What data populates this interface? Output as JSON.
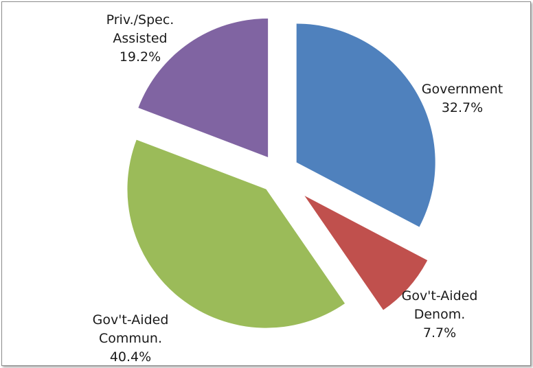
{
  "chart_data": {
    "type": "pie",
    "exploded": true,
    "start_angle_deg": 0,
    "direction": "clockwise",
    "slices": [
      {
        "label_lines": [
          "Government"
        ],
        "percent_label": "32.7%",
        "value": 32.7,
        "color": "#4f81bd"
      },
      {
        "label_lines": [
          "Gov't-Aided",
          "Denom."
        ],
        "percent_label": "7.7%",
        "value": 7.7,
        "color": "#c0504d"
      },
      {
        "label_lines": [
          "Gov't-Aided",
          "Commun."
        ],
        "percent_label": "40.4%",
        "value": 40.4,
        "color": "#9bbb59"
      },
      {
        "label_lines": [
          "Priv./Spec.",
          "Assisted"
        ],
        "percent_label": "19.2%",
        "value": 19.2,
        "color": "#8064a2"
      }
    ]
  }
}
